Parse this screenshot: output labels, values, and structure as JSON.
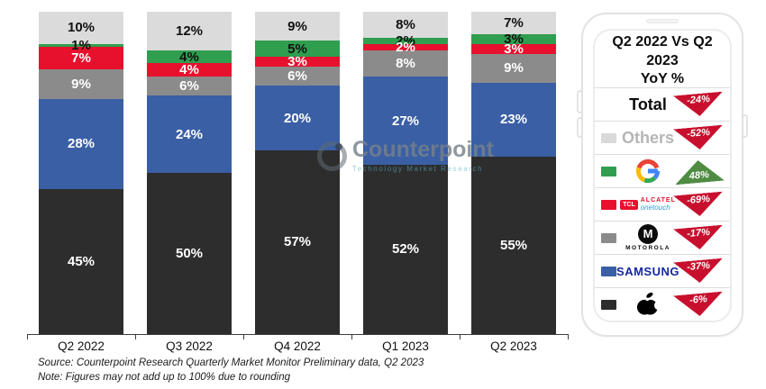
{
  "chart_data": {
    "type": "bar",
    "subtype": "stacked-100pct",
    "categories": [
      "Q2 2022",
      "Q3 2022",
      "Q4 2022",
      "Q1 2023",
      "Q2 2023"
    ],
    "series": [
      {
        "name": "Apple",
        "color": "#2d2d2e",
        "label_color": "#ffffff",
        "values": [
          45,
          50,
          57,
          52,
          55
        ]
      },
      {
        "name": "Samsung",
        "color": "#3a5fa5",
        "label_color": "#ffffff",
        "values": [
          28,
          24,
          20,
          27,
          23
        ]
      },
      {
        "name": "Motorola",
        "color": "#8b8b8b",
        "label_color": "#ffffff",
        "values": [
          9,
          6,
          6,
          8,
          9
        ]
      },
      {
        "name": "TCL",
        "color": "#e8112d",
        "label_color": "#ffffff",
        "values": [
          7,
          4,
          3,
          2,
          3
        ]
      },
      {
        "name": "Google",
        "color": "#2f9e4f",
        "label_color": "#111111",
        "values": [
          1,
          4,
          5,
          2,
          3
        ]
      },
      {
        "name": "Others",
        "color": "#dbdbdb",
        "label_color": "#111111",
        "values": [
          10,
          12,
          9,
          8,
          7
        ]
      }
    ],
    "unit": "%",
    "ylim": [
      0,
      100
    ],
    "grid": false,
    "legend_position": "right-phone-panel"
  },
  "panel": {
    "title_line1": "Q2 2022 Vs Q2 2023",
    "title_line2": "YoY %",
    "down_color": "#c8102e",
    "up_color": "#4f8c42",
    "rows": [
      {
        "type": "total",
        "label": "Total",
        "change": "-24%",
        "direction": "down"
      },
      {
        "type": "others",
        "label": "Others",
        "swatch": "#d9d9d9",
        "change": "-52%",
        "direction": "down"
      },
      {
        "type": "google",
        "label": "Google",
        "swatch": "#2f9e4f",
        "change": "48%",
        "direction": "up"
      },
      {
        "type": "tcl",
        "label": "TCL Alcatel",
        "swatch": "#e8112d",
        "tcl": "TCL",
        "alcatel": "ALCATEL",
        "onetouch": "onetouch",
        "change": "-69%",
        "direction": "down"
      },
      {
        "type": "motorola",
        "label": "Motorola",
        "swatch": "#8b8b8b",
        "m": "M",
        "word": "MOTOROLA",
        "change": "-17%",
        "direction": "down"
      },
      {
        "type": "samsung",
        "label": "Samsung",
        "swatch": "#3a5fa5",
        "word": "SAMSUNG",
        "change": "-37%",
        "direction": "down"
      },
      {
        "type": "apple",
        "label": "Apple",
        "swatch": "#2d2d2e",
        "change": "-6%",
        "direction": "down"
      }
    ]
  },
  "watermark": {
    "name": "Counterpoint",
    "tagline": "Technology Market Research"
  },
  "footer": {
    "source": "Source: Counterpoint Research Quarterly Market Monitor Preliminary data, Q2 2023",
    "note": "Note: Figures may not add up to 100% due to rounding"
  }
}
